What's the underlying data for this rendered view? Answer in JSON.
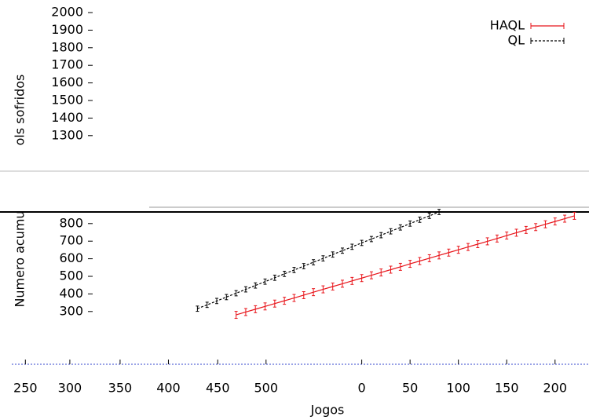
{
  "chart_data": {
    "type": "line",
    "xlabel": "Jogos",
    "ylabel_parts": [
      "ols sofridos",
      "Numero acumu"
    ],
    "x": [
      -170,
      -160,
      -150,
      -140,
      -130,
      -120,
      -110,
      -100,
      -90,
      -80,
      -70,
      -60,
      -50,
      -40,
      -30,
      -20,
      -10,
      0,
      10,
      20,
      30,
      40,
      50,
      60,
      70,
      80,
      90,
      100,
      110,
      120,
      130,
      140,
      150,
      160,
      170,
      180,
      190,
      200,
      210,
      220
    ],
    "series": [
      {
        "name": "HAQL",
        "color": "#e8141a",
        "dash": false,
        "error": 20,
        "values": [
          null,
          null,
          null,
          null,
          281,
          297,
          313,
          329,
          345,
          361,
          377,
          393,
          410,
          426,
          442,
          458,
          474,
          490,
          506,
          522,
          538,
          554,
          571,
          587,
          603,
          619,
          635,
          651,
          667,
          683,
          699,
          715,
          732,
          748,
          764,
          780,
          796,
          812,
          828,
          844
        ]
      },
      {
        "name": "QL",
        "color": "#000000",
        "dash": true,
        "error": 15,
        "values": [
          316,
          338,
          360,
          382,
          404,
          426,
          448,
          470,
          492,
          514,
          536,
          558,
          580,
          602,
          624,
          646,
          668,
          690,
          712,
          734,
          756,
          778,
          800,
          822,
          844,
          866,
          null,
          null,
          null,
          null,
          null,
          null,
          null,
          null,
          null,
          null,
          null,
          null,
          null,
          null
        ]
      }
    ],
    "xlim": [
      -358,
      227
    ],
    "xticks": [
      {
        "value": -348,
        "label": "250"
      },
      {
        "value": -302,
        "label": "300"
      },
      {
        "value": -250,
        "label": "350"
      },
      {
        "value": -200,
        "label": "400"
      },
      {
        "value": -149,
        "label": "450"
      },
      {
        "value": -99,
        "label": "500"
      },
      0,
      50,
      100,
      150,
      200
    ],
    "ylim": [
      0,
      2000
    ],
    "yticks": [
      300,
      400,
      500,
      600,
      700,
      800,
      1300,
      1400,
      1500,
      1600,
      1700,
      1800,
      1900,
      2000
    ],
    "legend": "top-right"
  }
}
